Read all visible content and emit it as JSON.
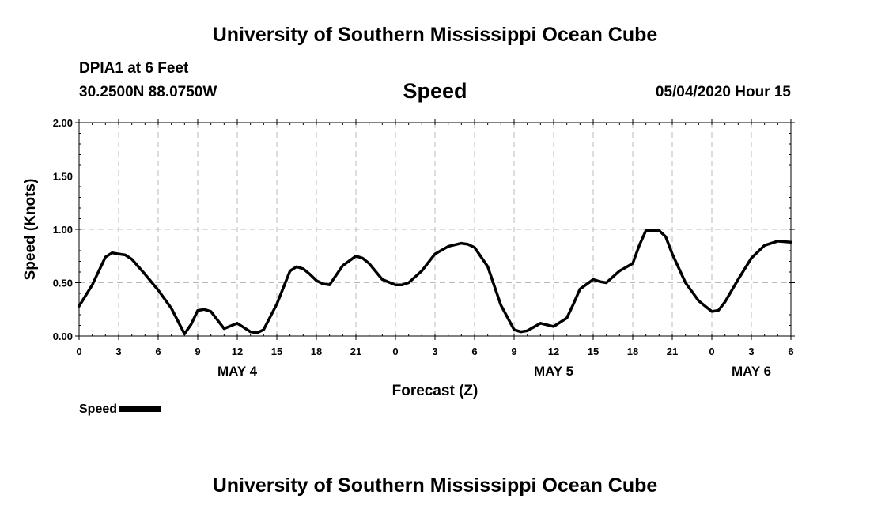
{
  "header": {
    "title": "University of Southern Mississippi Ocean Cube",
    "station": "DPIA1 at 6 Feet",
    "coordinates": "30.2500N 88.0750W",
    "datetime": "05/04/2020 Hour 15"
  },
  "footer": {
    "title": "University of Southern Mississippi Ocean Cube"
  },
  "legend": {
    "label": "Speed"
  },
  "chart_data": {
    "type": "line",
    "title": "Speed",
    "xlabel": "Forecast (Z)",
    "ylabel": "Speed (Knots)",
    "x_unit": "hours from May 4 00Z",
    "xlim": [
      0,
      54
    ],
    "ylim": [
      0,
      2
    ],
    "y_ticks": [
      "0.00",
      "0.50",
      "1.00",
      "1.50",
      "2.00"
    ],
    "x_ticks": [
      "0",
      "3",
      "6",
      "9",
      "12",
      "15",
      "18",
      "21",
      "0",
      "3",
      "6",
      "9",
      "12",
      "15",
      "18",
      "21",
      "0",
      "3",
      "6"
    ],
    "day_labels": [
      {
        "text": "MAY 4",
        "x": 12
      },
      {
        "text": "MAY 5",
        "x": 36
      },
      {
        "text": "MAY 6",
        "x": 51
      }
    ],
    "grid": true,
    "grid_style": "dashed",
    "legend_position": "bottom-left",
    "series": [
      {
        "name": "Speed",
        "color": "#000000",
        "x": [
          0,
          1,
          2,
          2.5,
          3,
          3.5,
          4,
          5,
          6,
          7,
          8,
          8.5,
          9,
          9.5,
          10,
          11,
          12,
          12.5,
          13,
          13.5,
          14,
          15,
          16,
          16.5,
          17,
          17.5,
          18,
          18.5,
          19,
          20,
          21,
          21.5,
          22,
          23,
          24,
          24.5,
          25,
          26,
          27,
          28,
          29,
          29.5,
          30,
          31,
          32,
          33,
          33.5,
          34,
          35,
          36,
          37,
          37.5,
          38,
          39,
          39.5,
          40,
          41,
          42,
          42.5,
          43,
          44,
          44.5,
          45,
          46,
          47,
          48,
          48.5,
          49,
          50,
          51,
          52,
          53,
          54
        ],
        "y": [
          0.28,
          0.48,
          0.74,
          0.78,
          0.77,
          0.76,
          0.72,
          0.58,
          0.43,
          0.26,
          0.02,
          0.11,
          0.24,
          0.25,
          0.23,
          0.07,
          0.12,
          0.08,
          0.04,
          0.03,
          0.06,
          0.3,
          0.61,
          0.65,
          0.63,
          0.58,
          0.52,
          0.49,
          0.48,
          0.66,
          0.75,
          0.73,
          0.68,
          0.53,
          0.48,
          0.48,
          0.5,
          0.61,
          0.77,
          0.84,
          0.87,
          0.86,
          0.83,
          0.65,
          0.29,
          0.06,
          0.04,
          0.05,
          0.12,
          0.09,
          0.17,
          0.3,
          0.44,
          0.53,
          0.51,
          0.5,
          0.61,
          0.68,
          0.85,
          0.99,
          0.99,
          0.93,
          0.77,
          0.5,
          0.33,
          0.23,
          0.24,
          0.32,
          0.53,
          0.73,
          0.85,
          0.89,
          0.88
        ]
      }
    ]
  }
}
